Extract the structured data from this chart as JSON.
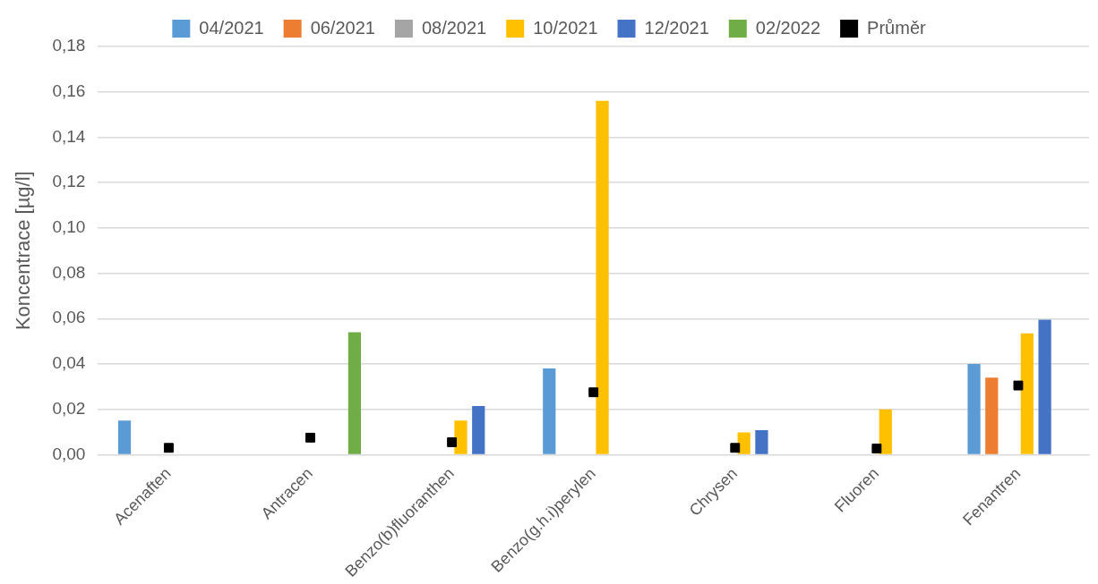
{
  "chart_data": {
    "type": "bar",
    "ylabel": "Koncentrace [µg/l]",
    "categories": [
      "Acenaften",
      "Antracen",
      "Benzo(b)fluoranthen",
      "Benzo(g.h.i)perylen",
      "Chrysen",
      "Fluoren",
      "Fenantren"
    ],
    "series": [
      {
        "name": "04/2021",
        "color": "#5b9bd5",
        "values": [
          0.015,
          null,
          null,
          0.038,
          null,
          null,
          0.04
        ]
      },
      {
        "name": "06/2021",
        "color": "#ed7d31",
        "values": [
          null,
          null,
          null,
          null,
          null,
          null,
          0.034
        ]
      },
      {
        "name": "08/2021",
        "color": "#a5a5a5",
        "values": [
          null,
          null,
          null,
          null,
          null,
          null,
          null
        ]
      },
      {
        "name": "10/2021",
        "color": "#ffc000",
        "values": [
          null,
          null,
          0.015,
          0.156,
          0.0098,
          0.02,
          0.0535
        ]
      },
      {
        "name": "12/2021",
        "color": "#4472c4",
        "values": [
          null,
          null,
          0.0215,
          null,
          0.0108,
          null,
          0.0595
        ]
      },
      {
        "name": "02/2022",
        "color": "#70ad47",
        "values": [
          null,
          0.054,
          null,
          null,
          null,
          null,
          null
        ]
      },
      {
        "name": "Průměr",
        "type": "scatter",
        "marker": "square",
        "color": "#000000",
        "values": [
          0.003,
          0.0075,
          0.0055,
          0.0275,
          0.003,
          0.0027,
          0.0305
        ]
      }
    ],
    "ylim": [
      0,
      0.18
    ],
    "yticks": [
      {
        "value": 0,
        "label": "0,00"
      },
      {
        "value": 0.02,
        "label": "0,02"
      },
      {
        "value": 0.04,
        "label": "0,04"
      },
      {
        "value": 0.06,
        "label": "0,06"
      },
      {
        "value": 0.08,
        "label": "0,08"
      },
      {
        "value": 0.1,
        "label": "0,10"
      },
      {
        "value": 0.12,
        "label": "0,12"
      },
      {
        "value": 0.14,
        "label": "0,14"
      },
      {
        "value": 0.16,
        "label": "0,16"
      },
      {
        "value": 0.18,
        "label": "0,18"
      }
    ],
    "grid": "y",
    "legend": "top"
  }
}
